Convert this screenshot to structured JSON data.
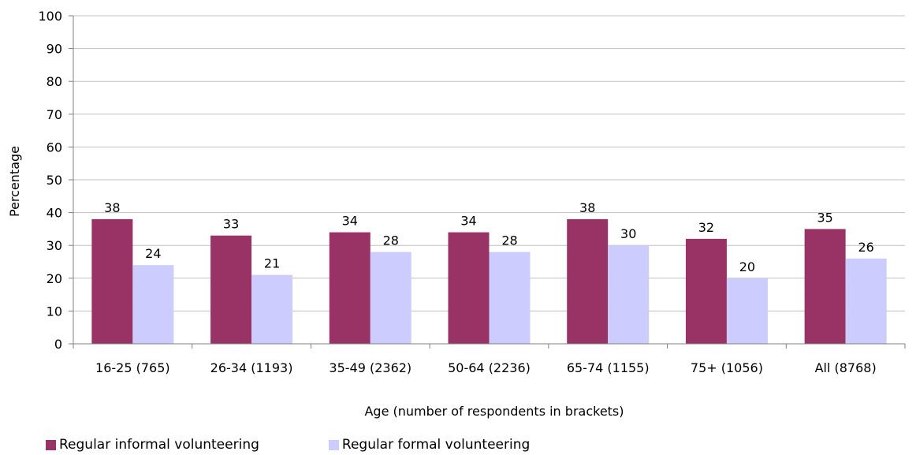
{
  "chart_data": {
    "type": "bar",
    "title": "",
    "xlabel": "Age (number of respondents in brackets)",
    "ylabel": "Percentage",
    "ylim": [
      0,
      100
    ],
    "yticks": [
      "0",
      "10",
      "20",
      "30",
      "40",
      "50",
      "60",
      "70",
      "80",
      "90",
      "100"
    ],
    "grid": true,
    "legend_position": "bottom-left",
    "categories": [
      "16-25 (765)",
      "26-34 (1193)",
      "35-49 (2362)",
      "50-64 (2236)",
      "65-74 (1155)",
      "75+ (1056)",
      "All (8768)"
    ],
    "series": [
      {
        "name": "Regular informal volunteering",
        "color": "#993366",
        "values": [
          38,
          33,
          34,
          34,
          38,
          32,
          35
        ]
      },
      {
        "name": "Regular formal volunteering",
        "color": "#ccccff",
        "values": [
          24,
          21,
          28,
          28,
          30,
          20,
          26
        ]
      }
    ]
  }
}
